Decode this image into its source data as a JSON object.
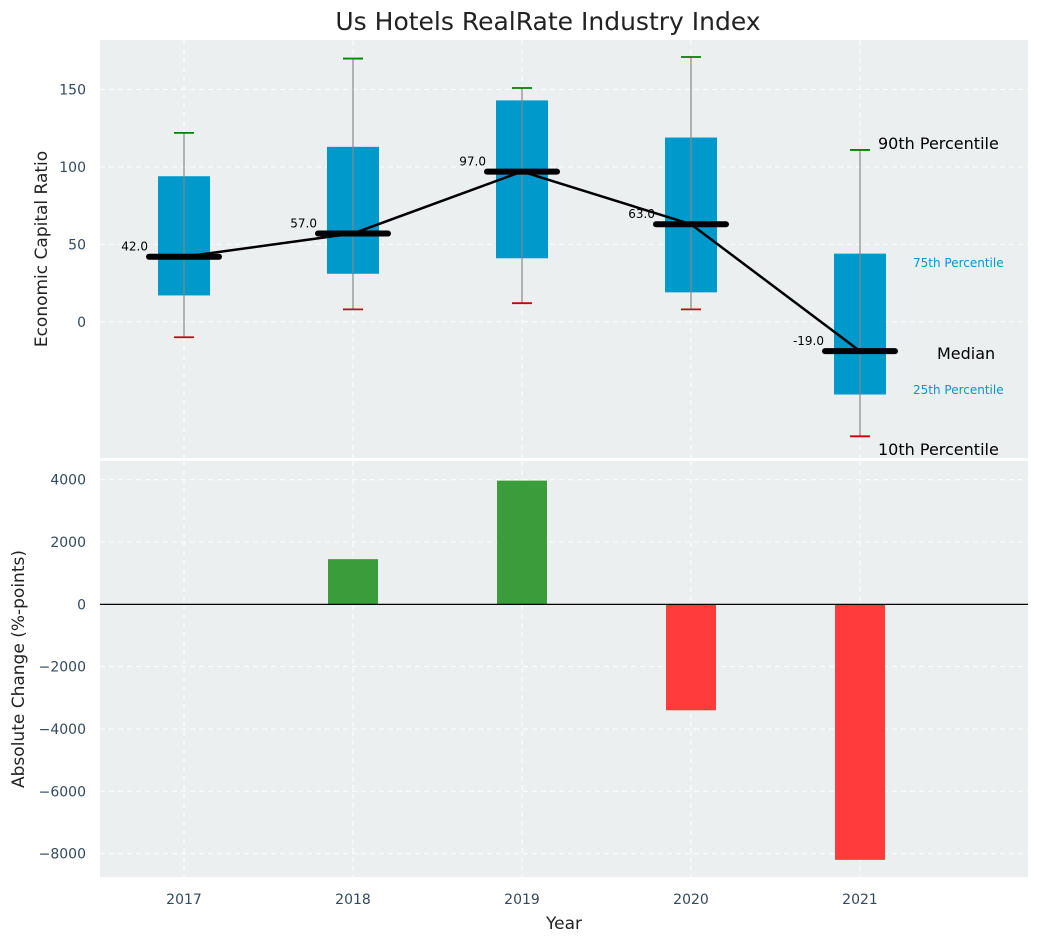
{
  "chart_data": [
    {
      "type": "box",
      "title": "Us Hotels RealRate Industry Index",
      "ylabel": "Economic Capital Ratio",
      "ylim": [
        -88,
        182
      ],
      "yticks": [
        0,
        50,
        100,
        150
      ],
      "categories": [
        "2017",
        "2018",
        "2019",
        "2020",
        "2021"
      ],
      "p10": [
        -10,
        8,
        12,
        8,
        -74
      ],
      "p25": [
        17,
        31,
        41,
        19,
        -47
      ],
      "median": [
        42,
        57,
        97,
        63,
        -19
      ],
      "p75": [
        94,
        113,
        143,
        119,
        44
      ],
      "p90": [
        122,
        170,
        151,
        171,
        111
      ],
      "median_labels": [
        "42.0",
        "57.0",
        "97.0",
        "63.0",
        "-19.0"
      ],
      "legend": {
        "p90": "90th Percentile",
        "p75": "75th Percentile",
        "median": "Median",
        "p25": "25th Percentile",
        "p10": "10th Percentile"
      },
      "grid": true,
      "colors": {
        "box": "#0099cc",
        "p90_cap": "#008000",
        "p10_cap": "#cc0000",
        "median": "#000000",
        "legend_small": "#0099cc",
        "background": "#ebeff0"
      }
    },
    {
      "type": "bar",
      "xlabel": "Year",
      "ylabel": "Absolute Change (%-points)",
      "ylim": [
        -8750,
        4600
      ],
      "yticks": [
        4000,
        2000,
        0,
        -2000,
        -4000,
        -6000,
        -8000
      ],
      "ytick_labels": [
        "4000",
        "2000",
        "0",
        "−2000",
        "−4000",
        "−6000",
        "−8000"
      ],
      "categories": [
        "2017",
        "2018",
        "2019",
        "2020",
        "2021"
      ],
      "values": [
        0,
        1450,
        3970,
        -3400,
        -8200
      ],
      "grid": true,
      "colors": {
        "positive": "#3a9c3a",
        "negative": "#ff3b3b",
        "background": "#ebeff0"
      }
    }
  ]
}
